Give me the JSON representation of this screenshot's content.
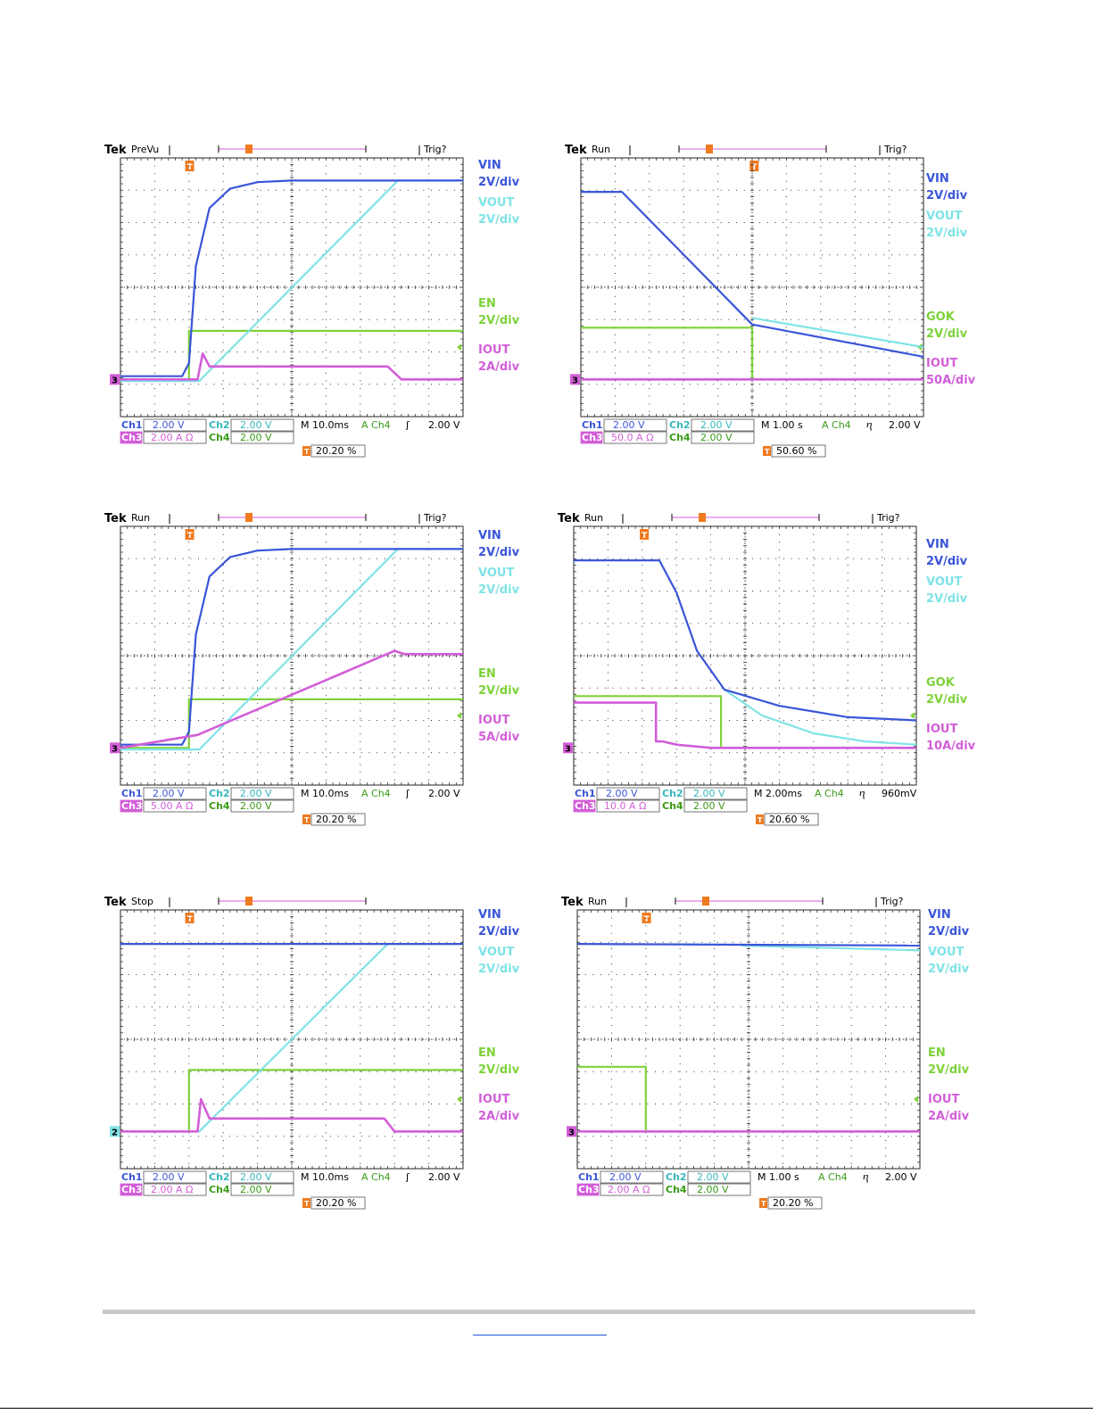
{
  "colors": {
    "ch1": "#3a55d9",
    "ch2": "#7fe3e6",
    "ch3": "#d25ed8",
    "ch4": "#7ed23a",
    "grid": "#333333",
    "trigger": "#f07a1e"
  },
  "scopes": [
    {
      "mode": "PreVu",
      "trig_label": "Trig?",
      "channels_row1": [
        "Ch1",
        "2.00 V",
        "Ch2",
        "2.00 V"
      ],
      "channels_row2": [
        "Ch3",
        "2.00 A Ω",
        "Ch4",
        "2.00 V"
      ],
      "timebase": "M 10.0ms",
      "trig_src": "A  Ch4",
      "trig_slope": "ʃ",
      "trig_level": "2.00 V",
      "trig_pos": "20.20 %",
      "ground_marker": "3",
      "legend": [
        {
          "name": "VIN",
          "scale": "2V/div",
          "color_key": "ch1"
        },
        {
          "name": "VOUT",
          "scale": "2V/div",
          "color_key": "ch2"
        },
        {
          "name": "EN",
          "scale": "2V/div",
          "color_key": "ch4"
        },
        {
          "name": "IOUT",
          "scale": "2A/div",
          "color_key": "ch3"
        }
      ]
    },
    {
      "mode": "Run",
      "trig_label": "Trig?",
      "channels_row1": [
        "Ch1",
        "2.00 V",
        "Ch2",
        "2.00 V"
      ],
      "channels_row2": [
        "Ch3",
        "50.0 A Ω",
        "Ch4",
        "2.00 V"
      ],
      "timebase": "M 1.00 s",
      "trig_src": "A  Ch4",
      "trig_slope": "ⴄ",
      "trig_level": "2.00 V",
      "trig_pos": "50.60 %",
      "ground_marker": "3",
      "legend": [
        {
          "name": "VIN",
          "scale": "2V/div",
          "color_key": "ch1"
        },
        {
          "name": "VOUT",
          "scale": "2V/div",
          "color_key": "ch2"
        },
        {
          "name": "GOK",
          "scale": "2V/div",
          "color_key": "ch4"
        },
        {
          "name": "IOUT",
          "scale": "50A/div",
          "color_key": "ch3"
        }
      ]
    },
    {
      "mode": "Run",
      "trig_label": "Trig?",
      "channels_row1": [
        "Ch1",
        "2.00 V",
        "Ch2",
        "2.00 V"
      ],
      "channels_row2": [
        "Ch3",
        "5.00 A Ω",
        "Ch4",
        "2.00 V"
      ],
      "timebase": "M 10.0ms",
      "trig_src": "A  Ch4",
      "trig_slope": "ʃ",
      "trig_level": "2.00 V",
      "trig_pos": "20.20 %",
      "ground_marker": "3",
      "legend": [
        {
          "name": "VIN",
          "scale": "2V/div",
          "color_key": "ch1"
        },
        {
          "name": "VOUT",
          "scale": "2V/div",
          "color_key": "ch2"
        },
        {
          "name": "EN",
          "scale": "2V/div",
          "color_key": "ch4"
        },
        {
          "name": "IOUT",
          "scale": "5A/div",
          "color_key": "ch3"
        }
      ]
    },
    {
      "mode": "Run",
      "trig_label": "Trig?",
      "channels_row1": [
        "Ch1",
        "2.00 V",
        "Ch2",
        "2.00 V"
      ],
      "channels_row2": [
        "Ch3",
        "10.0 A Ω",
        "Ch4",
        "2.00 V"
      ],
      "timebase": "M 2.00ms",
      "trig_src": "A  Ch4",
      "trig_slope": "ⴄ",
      "trig_level": "960mV",
      "trig_pos": "20.60 %",
      "ground_marker": "3",
      "legend": [
        {
          "name": "VIN",
          "scale": "2V/div",
          "color_key": "ch1"
        },
        {
          "name": "VOUT",
          "scale": "2V/div",
          "color_key": "ch2"
        },
        {
          "name": "GOK",
          "scale": "2V/div",
          "color_key": "ch4"
        },
        {
          "name": "IOUT",
          "scale": "10A/div",
          "color_key": "ch3"
        }
      ]
    },
    {
      "mode": "Stop",
      "trig_label": "",
      "channels_row1": [
        "Ch1",
        "2.00 V",
        "Ch2",
        "2.00 V"
      ],
      "channels_row2": [
        "Ch3",
        "2.00 A Ω",
        "Ch4",
        "2.00 V"
      ],
      "timebase": "M 10.0ms",
      "trig_src": "A  Ch4",
      "trig_slope": "ʃ",
      "trig_level": "2.00 V",
      "trig_pos": "20.20 %",
      "ground_marker": "2",
      "legend": [
        {
          "name": "VIN",
          "scale": "2V/div",
          "color_key": "ch1"
        },
        {
          "name": "VOUT",
          "scale": "2V/div",
          "color_key": "ch2"
        },
        {
          "name": "EN",
          "scale": "2V/div",
          "color_key": "ch4"
        },
        {
          "name": "IOUT",
          "scale": "2A/div",
          "color_key": "ch3"
        }
      ]
    },
    {
      "mode": "Run",
      "trig_label": "Trig?",
      "channels_row1": [
        "Ch1",
        "2.00 V",
        "Ch2",
        "2.00 V"
      ],
      "channels_row2": [
        "Ch3",
        "2.00 A Ω",
        "Ch4",
        "2.00 V"
      ],
      "timebase": "M 1.00 s",
      "trig_src": "A  Ch4",
      "trig_slope": "ⴄ",
      "trig_level": "2.00 V",
      "trig_pos": "20.20 %",
      "ground_marker": "3",
      "legend": [
        {
          "name": "VIN",
          "scale": "2V/div",
          "color_key": "ch1"
        },
        {
          "name": "VOUT",
          "scale": "2V/div",
          "color_key": "ch2"
        },
        {
          "name": "EN",
          "scale": "2V/div",
          "color_key": "ch4"
        },
        {
          "name": "IOUT",
          "scale": "2A/div",
          "color_key": "ch3"
        }
      ]
    }
  ],
  "chart_data": [
    {
      "type": "line",
      "x_unit": "div",
      "y_unit": "div",
      "xlim": [
        0,
        10
      ],
      "ylim": [
        0,
        8
      ],
      "series": [
        {
          "name": "VIN",
          "color_key": "ch1",
          "x": [
            0,
            1.8,
            2.0,
            2.2,
            2.6,
            3.2,
            4.0,
            5.0,
            10
          ],
          "y": [
            0.1,
            0.1,
            0.5,
            3.5,
            5.3,
            5.9,
            6.1,
            6.15,
            6.15
          ]
        },
        {
          "name": "VOUT",
          "color_key": "ch2",
          "x": [
            0,
            2.3,
            8.1,
            10
          ],
          "y": [
            -0.05,
            -0.05,
            6.15,
            6.15
          ]
        },
        {
          "name": "EN",
          "color_key": "ch4",
          "x": [
            0,
            2.0,
            2.0,
            10
          ],
          "y": [
            0,
            0,
            1.5,
            1.5
          ]
        },
        {
          "name": "IOUT",
          "color_key": "ch3",
          "x": [
            0,
            2.25,
            2.4,
            2.6,
            7.8,
            8.2,
            10
          ],
          "y": [
            0,
            0,
            0.8,
            0.4,
            0.4,
            0,
            0
          ]
        }
      ]
    },
    {
      "type": "line",
      "x_unit": "div",
      "y_unit": "div",
      "xlim": [
        0,
        10
      ],
      "ylim": [
        0,
        8
      ],
      "series": [
        {
          "name": "VIN",
          "color_key": "ch1",
          "x": [
            0,
            1.2,
            5.0,
            10
          ],
          "y": [
            5.8,
            5.8,
            1.7,
            0.7
          ]
        },
        {
          "name": "VOUT",
          "color_key": "ch2",
          "x": [
            5.0,
            10
          ],
          "y": [
            1.9,
            1.0
          ]
        },
        {
          "name": "GOK",
          "color_key": "ch4",
          "x": [
            0,
            5.0,
            5.0,
            10
          ],
          "y": [
            1.6,
            1.6,
            0,
            0
          ]
        },
        {
          "name": "IOUT",
          "color_key": "ch3",
          "x": [
            0,
            10
          ],
          "y": [
            0,
            0
          ]
        }
      ]
    },
    {
      "type": "line",
      "x_unit": "div",
      "y_unit": "div",
      "xlim": [
        0,
        10
      ],
      "ylim": [
        0,
        8
      ],
      "series": [
        {
          "name": "VIN",
          "color_key": "ch1",
          "x": [
            0,
            1.8,
            2.0,
            2.2,
            2.6,
            3.2,
            4.0,
            5.0,
            10
          ],
          "y": [
            0.1,
            0.1,
            0.5,
            3.5,
            5.3,
            5.9,
            6.1,
            6.15,
            6.15
          ]
        },
        {
          "name": "VOUT",
          "color_key": "ch2",
          "x": [
            0,
            2.3,
            8.1,
            10
          ],
          "y": [
            -0.05,
            -0.05,
            6.15,
            6.15
          ]
        },
        {
          "name": "EN",
          "color_key": "ch4",
          "x": [
            0,
            2.0,
            2.0,
            10
          ],
          "y": [
            0,
            0,
            1.5,
            1.5
          ]
        },
        {
          "name": "IOUT",
          "color_key": "ch3",
          "x": [
            0,
            2.25,
            8.0,
            8.3,
            10
          ],
          "y": [
            0,
            0.4,
            3.0,
            2.9,
            2.9
          ]
        }
      ]
    },
    {
      "type": "line",
      "x_unit": "div",
      "y_unit": "div",
      "xlim": [
        0,
        10
      ],
      "ylim": [
        0,
        8
      ],
      "series": [
        {
          "name": "VIN",
          "color_key": "ch1",
          "x": [
            0,
            2.5,
            3.0,
            3.6,
            4.4,
            6.0,
            8.0,
            10
          ],
          "y": [
            5.8,
            5.8,
            4.8,
            3.0,
            1.8,
            1.3,
            0.95,
            0.85
          ]
        },
        {
          "name": "VOUT",
          "color_key": "ch2",
          "x": [
            4.4,
            5.5,
            7.0,
            8.5,
            10
          ],
          "y": [
            1.8,
            1.0,
            0.45,
            0.2,
            0.1
          ]
        },
        {
          "name": "GOK",
          "color_key": "ch4",
          "x": [
            0,
            4.3,
            4.3,
            10
          ],
          "y": [
            1.6,
            1.6,
            0,
            0
          ]
        },
        {
          "name": "IOUT",
          "color_key": "ch3",
          "x": [
            0,
            2.4,
            2.4,
            2.6,
            3.0,
            4.0,
            10
          ],
          "y": [
            1.4,
            1.4,
            0.2,
            0.2,
            0.1,
            0,
            0
          ]
        }
      ]
    },
    {
      "type": "line",
      "x_unit": "div",
      "y_unit": "div",
      "xlim": [
        0,
        10
      ],
      "ylim": [
        0,
        8
      ],
      "series": [
        {
          "name": "VIN",
          "color_key": "ch1",
          "x": [
            0,
            10
          ],
          "y": [
            5.8,
            5.8
          ]
        },
        {
          "name": "VOUT",
          "color_key": "ch2",
          "x": [
            0,
            2.3,
            7.8,
            10
          ],
          "y": [
            0,
            0,
            5.8,
            5.8
          ]
        },
        {
          "name": "EN",
          "color_key": "ch4",
          "x": [
            0,
            2.0,
            2.0,
            10
          ],
          "y": [
            0,
            0,
            1.9,
            1.9
          ]
        },
        {
          "name": "IOUT",
          "color_key": "ch3",
          "x": [
            0,
            2.25,
            2.35,
            2.6,
            7.7,
            8.0,
            10
          ],
          "y": [
            0,
            0,
            1.0,
            0.4,
            0.4,
            0,
            0
          ]
        }
      ]
    },
    {
      "type": "line",
      "x_unit": "div",
      "y_unit": "div",
      "xlim": [
        0,
        10
      ],
      "ylim": [
        0,
        8
      ],
      "series": [
        {
          "name": "VIN",
          "color_key": "ch1",
          "x": [
            0,
            10
          ],
          "y": [
            5.8,
            5.75
          ]
        },
        {
          "name": "VOUT",
          "color_key": "ch2",
          "x": [
            4.8,
            10
          ],
          "y": [
            5.75,
            5.6
          ]
        },
        {
          "name": "EN",
          "color_key": "ch4",
          "x": [
            0,
            2.0,
            2.0,
            10
          ],
          "y": [
            2.0,
            2.0,
            0,
            0
          ]
        },
        {
          "name": "IOUT",
          "color_key": "ch3",
          "x": [
            0,
            10
          ],
          "y": [
            0,
            0
          ]
        }
      ]
    }
  ]
}
